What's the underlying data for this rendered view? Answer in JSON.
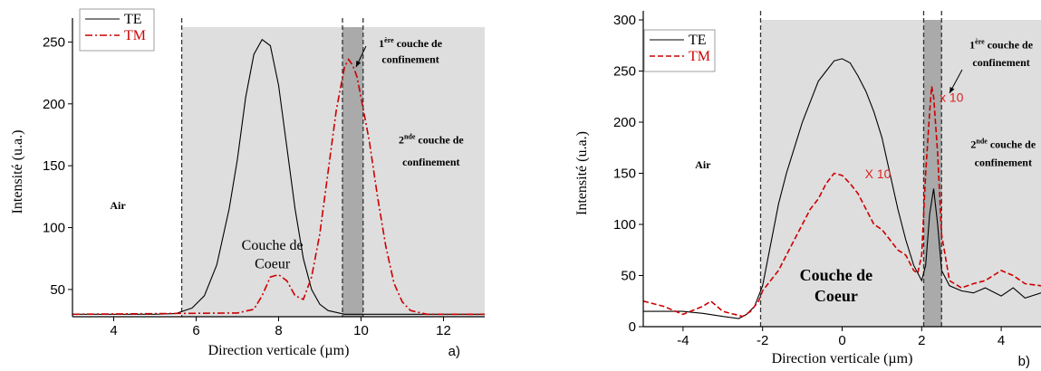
{
  "chart_data": [
    {
      "type": "line",
      "panel_label": "a)",
      "xlabel": "Direction verticale (µm)",
      "ylabel": "Intensité (u.a.)",
      "xlim": [
        3,
        13
      ],
      "ylim": [
        28,
        262
      ],
      "x_ticks": [
        4,
        6,
        8,
        10,
        12
      ],
      "y_ticks": [
        50,
        100,
        150,
        200,
        250
      ],
      "legend": {
        "placement": "top-left",
        "entries": [
          "TE",
          "TM"
        ]
      },
      "series": [
        {
          "name": "TE",
          "style": "solid",
          "color": "#000000",
          "x": [
            3.0,
            5.0,
            5.5,
            5.9,
            6.2,
            6.5,
            6.8,
            7.0,
            7.2,
            7.4,
            7.6,
            7.8,
            8.0,
            8.2,
            8.4,
            8.6,
            8.8,
            9.0,
            9.2,
            9.6,
            13.0
          ],
          "y": [
            30,
            30,
            30.5,
            35,
            45,
            70,
            115,
            155,
            205,
            240,
            252,
            247,
            215,
            165,
            115,
            75,
            50,
            38,
            33,
            30,
            30
          ]
        },
        {
          "name": "TM",
          "style": "dashdot",
          "color": "#cc0000",
          "x": [
            3.0,
            7.0,
            7.4,
            7.6,
            7.8,
            8.0,
            8.2,
            8.4,
            8.6,
            8.8,
            9.0,
            9.2,
            9.4,
            9.6,
            9.7,
            9.8,
            9.9,
            10.0,
            10.2,
            10.4,
            10.6,
            10.8,
            11.0,
            11.2,
            11.6,
            13.0
          ],
          "y": [
            30,
            31,
            34,
            45,
            60,
            62,
            57,
            45,
            42,
            60,
            95,
            145,
            195,
            230,
            236,
            231,
            222,
            205,
            170,
            125,
            85,
            55,
            40,
            33,
            30,
            30
          ]
        }
      ],
      "regions": [
        {
          "x0": 5.65,
          "x1": 13.0,
          "shade": "light"
        },
        {
          "x0": 9.55,
          "x1": 10.05,
          "shade": "dark"
        }
      ],
      "dashed_lines_x": [
        5.65,
        9.55,
        10.05
      ],
      "annotations": [
        {
          "text": "Air",
          "x": 4.1,
          "y": 115,
          "bold": true
        },
        {
          "text": "Couche de",
          "x": 7.85,
          "y": 82,
          "bold": false
        },
        {
          "text": "Coeur",
          "x": 7.85,
          "y": 67,
          "bold": false
        },
        {
          "sup_text": "ère",
          "base": "1",
          "rest": " couche de",
          "x": 11.2,
          "y": 246,
          "bold": true,
          "note": "line1"
        },
        {
          "text": "confinement",
          "x": 11.2,
          "y": 233,
          "bold": true
        },
        {
          "sup_text": "nde",
          "base": "2",
          "rest": " couche de",
          "x": 11.7,
          "y": 168,
          "bold": true
        },
        {
          "text": "confinement",
          "x": 11.7,
          "y": 150,
          "bold": true
        }
      ]
    },
    {
      "type": "line",
      "panel_label": "b)",
      "xlabel": "Direction verticale (µm)",
      "ylabel": "Intensité (u.a.)",
      "xlim": [
        -5,
        5
      ],
      "ylim": [
        0,
        300
      ],
      "x_ticks": [
        -4,
        -2,
        0,
        2,
        4
      ],
      "y_ticks": [
        0,
        50,
        100,
        150,
        200,
        250,
        300
      ],
      "legend": {
        "placement": "top-left",
        "entries": [
          "TE",
          "TM"
        ]
      },
      "series": [
        {
          "name": "TE",
          "style": "solid",
          "color": "#000000",
          "x": [
            -5.0,
            -4.0,
            -3.5,
            -3.0,
            -2.6,
            -2.4,
            -2.2,
            -2.0,
            -1.8,
            -1.6,
            -1.4,
            -1.2,
            -1.0,
            -0.8,
            -0.6,
            -0.4,
            -0.2,
            0.0,
            0.2,
            0.4,
            0.6,
            0.8,
            1.0,
            1.2,
            1.4,
            1.6,
            1.8,
            2.0,
            2.1,
            2.2,
            2.3,
            2.4,
            2.5,
            2.7,
            3.0,
            3.3,
            3.6,
            4.0,
            4.3,
            4.6,
            5.0
          ],
          "y": [
            15,
            15,
            13,
            10,
            8,
            12,
            20,
            40,
            80,
            120,
            150,
            175,
            200,
            220,
            240,
            250,
            260,
            262,
            258,
            245,
            230,
            210,
            185,
            150,
            115,
            85,
            60,
            45,
            60,
            110,
            135,
            100,
            55,
            40,
            35,
            33,
            38,
            30,
            38,
            28,
            33
          ]
        },
        {
          "name": "TM",
          "style": "dashed",
          "color": "#cc0000",
          "x": [
            -5.0,
            -4.5,
            -4.0,
            -3.5,
            -3.3,
            -3.0,
            -2.5,
            -2.3,
            -2.1,
            -2.0,
            -1.8,
            -1.6,
            -1.4,
            -1.2,
            -1.0,
            -0.8,
            -0.6,
            -0.4,
            -0.2,
            0.0,
            0.2,
            0.4,
            0.6,
            0.8,
            1.0,
            1.2,
            1.4,
            1.6,
            1.8,
            1.9,
            2.0,
            2.1,
            2.2,
            2.25,
            2.3,
            2.4,
            2.5,
            2.7,
            3.0,
            3.3,
            3.6,
            4.0,
            4.3,
            4.6,
            5.0
          ],
          "y": [
            25,
            20,
            12,
            20,
            25,
            15,
            10,
            15,
            25,
            35,
            45,
            55,
            70,
            85,
            100,
            115,
            125,
            140,
            150,
            148,
            140,
            130,
            115,
            100,
            95,
            85,
            75,
            70,
            55,
            52,
            70,
            150,
            210,
            235,
            225,
            170,
            90,
            45,
            38,
            42,
            45,
            55,
            50,
            42,
            40
          ]
        }
      ],
      "regions": [
        {
          "x0": -2.05,
          "x1": 5.0,
          "shade": "light"
        },
        {
          "x0": 2.05,
          "x1": 2.5,
          "shade": "dark"
        }
      ],
      "dashed_lines_x": [
        -2.05,
        2.05,
        2.5
      ],
      "annotations": [
        {
          "text": "Air",
          "x": -3.5,
          "y": 155,
          "bold": true
        },
        {
          "text": "Couche de",
          "x": -0.15,
          "y": 45,
          "bold": true
        },
        {
          "text": "Coeur",
          "x": -0.15,
          "y": 25,
          "bold": true
        },
        {
          "sup_text": "ère",
          "base": "1",
          "rest": " couche de",
          "x": 4.0,
          "y": 272,
          "bold": true
        },
        {
          "text": "confinement",
          "x": 4.0,
          "y": 255,
          "bold": true
        },
        {
          "sup_text": "nde",
          "base": "2",
          "rest": " couche de",
          "x": 4.05,
          "y": 175,
          "bold": true
        },
        {
          "text": "confinement",
          "x": 4.05,
          "y": 157,
          "bold": true
        }
      ],
      "red_labels": [
        {
          "text": "x 10",
          "x": 2.75,
          "y": 220
        },
        {
          "text": "X 10",
          "x": 0.9,
          "y": 145
        }
      ]
    }
  ]
}
